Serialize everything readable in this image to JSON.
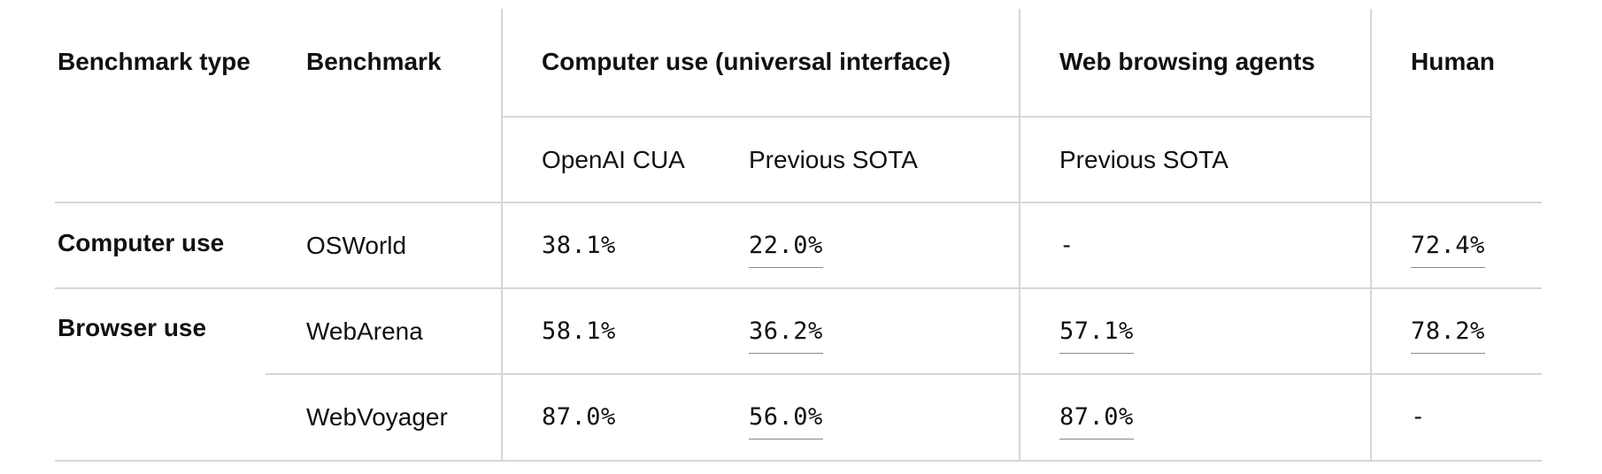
{
  "headers": {
    "benchmark_type": "Benchmark type",
    "benchmark": "Benchmark",
    "computer_use": "Computer use (universal interface)",
    "web_browsing": "Web browsing agents",
    "human": "Human",
    "openai_cua": "OpenAI CUA",
    "previous_sota_cu": "Previous SOTA",
    "previous_sota_web": "Previous SOTA"
  },
  "groups": {
    "computer_use": "Computer use",
    "browser_use": "Browser use"
  },
  "rows": [
    {
      "benchmark": "OSWorld",
      "cua": "38.1%",
      "prev_sota_cu": "22.0%",
      "prev_sota_web": "-",
      "human": "72.4%"
    },
    {
      "benchmark": "WebArena",
      "cua": "58.1%",
      "prev_sota_cu": "36.2%",
      "prev_sota_web": "57.1%",
      "human": "78.2%"
    },
    {
      "benchmark": "WebVoyager",
      "cua": "87.0%",
      "prev_sota_cu": "56.0%",
      "prev_sota_web": "87.0%",
      "human": "-"
    }
  ]
}
